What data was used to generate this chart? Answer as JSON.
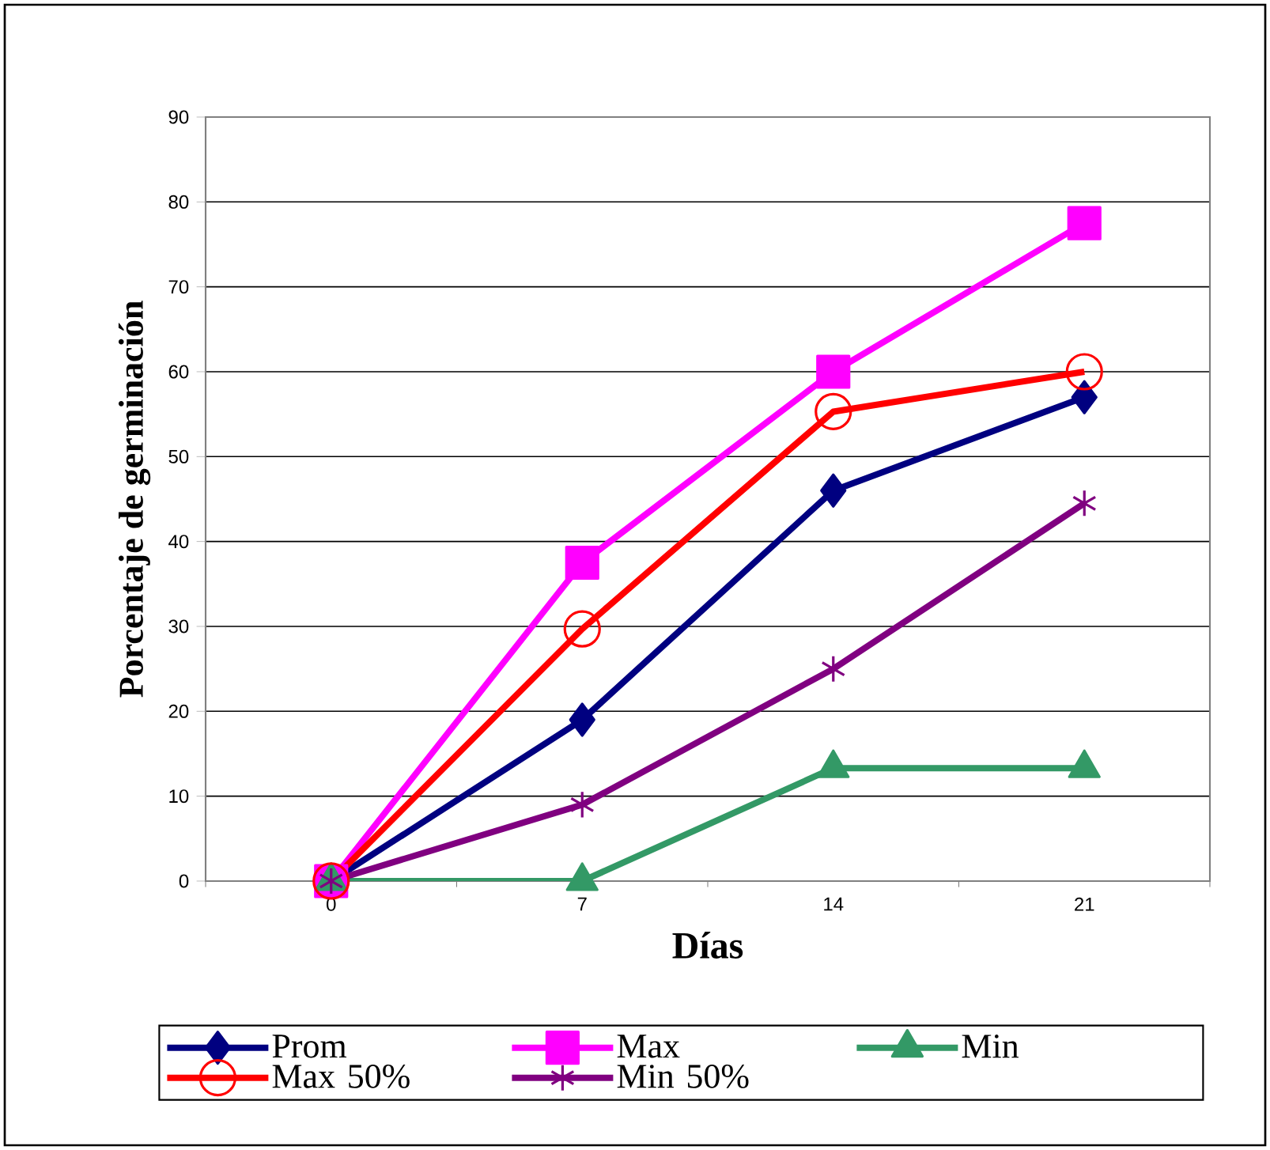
{
  "chart_data": {
    "type": "line",
    "xlabel": "Días",
    "ylabel": "Porcentaje de germinación",
    "categories": [
      "0",
      "7",
      "14",
      "21"
    ],
    "series": [
      {
        "name": "Prom",
        "color": "#000080",
        "marker": "diamond",
        "values": [
          0,
          19,
          46,
          57
        ]
      },
      {
        "name": "Max",
        "color": "#ff00ff",
        "marker": "square",
        "values": [
          0,
          37.5,
          60,
          77.5
        ]
      },
      {
        "name": "Min",
        "color": "#339966",
        "marker": "triangle",
        "values": [
          0,
          0,
          13.3,
          13.3
        ]
      },
      {
        "name": "Max 50%",
        "color": "#ff0000",
        "marker": "circle",
        "values": [
          0,
          29.7,
          55.3,
          60
        ]
      },
      {
        "name": "Min 50%",
        "color": "#800080",
        "marker": "cross",
        "values": [
          0,
          9,
          25,
          44.5
        ]
      }
    ],
    "ylim": [
      0,
      90
    ],
    "yticks": [
      0,
      10,
      20,
      30,
      40,
      50,
      60,
      70,
      80,
      90
    ],
    "grid": "y",
    "legend": "bottom",
    "line_style": "solid"
  }
}
